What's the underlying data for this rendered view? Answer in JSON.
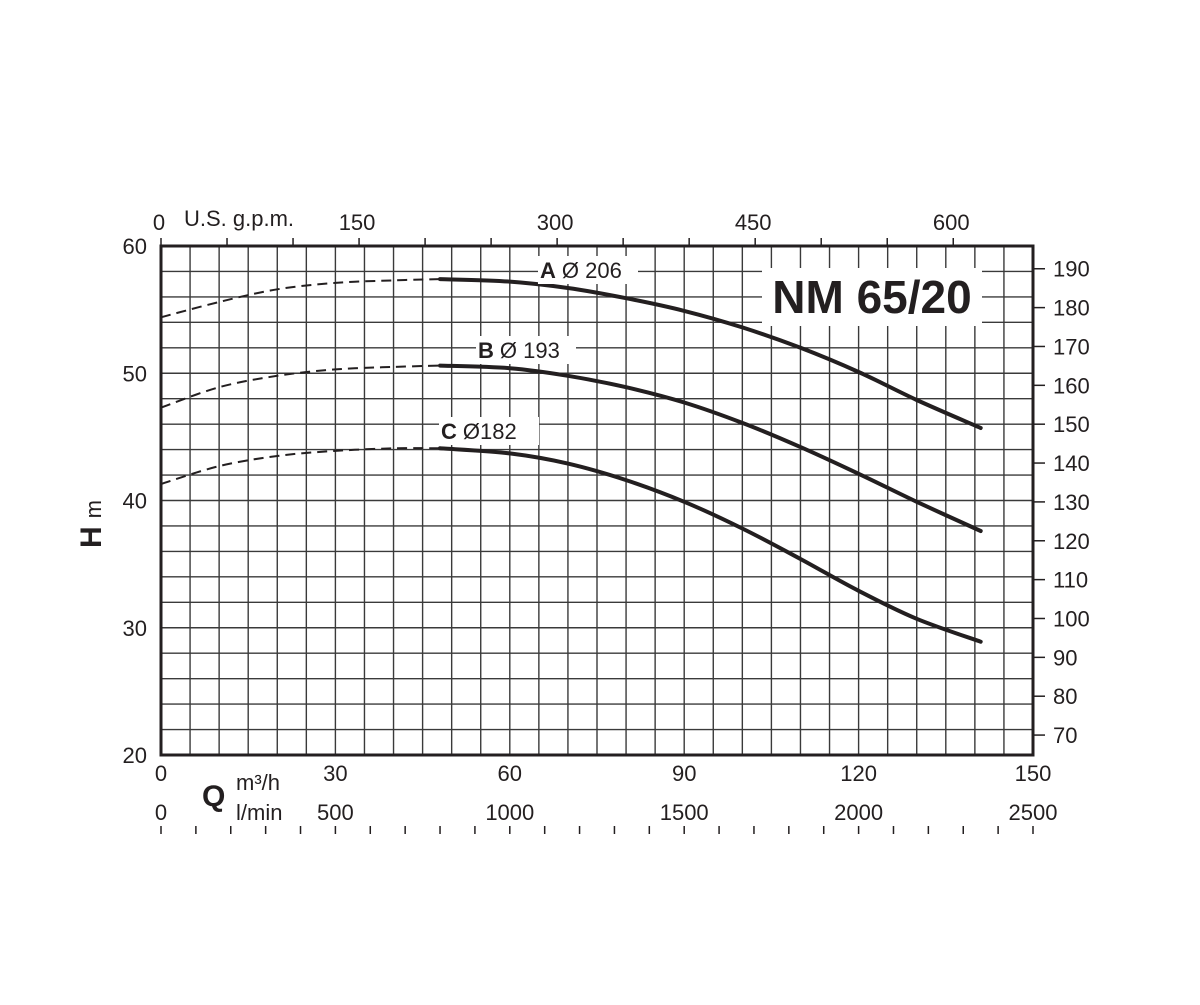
{
  "chart_data": {
    "type": "line",
    "title": "NM 65/20",
    "x": {
      "label": "Q",
      "unit": "m³/h",
      "range": [
        0,
        150
      ],
      "ticks": [
        0,
        30,
        60,
        90,
        120,
        150
      ]
    },
    "x_secondary_bottom": {
      "unit": "l/min",
      "range": [
        0,
        2500
      ],
      "ticks": [
        0,
        500,
        1000,
        1500,
        2000,
        2500
      ]
    },
    "x_secondary_top": {
      "unit": "U.S. g.p.m.",
      "ticks": [
        0,
        150,
        300,
        450,
        600
      ]
    },
    "y": {
      "label": "H",
      "unit": "m",
      "range": [
        20,
        60
      ],
      "ticks": [
        20,
        30,
        40,
        50,
        60
      ]
    },
    "y_secondary_right": {
      "unit": "",
      "ticks": [
        70,
        80,
        90,
        100,
        110,
        120,
        130,
        140,
        150,
        160,
        170,
        180,
        190
      ]
    },
    "grid": true,
    "series": [
      {
        "name": "A",
        "diameter_label": "Ø 206",
        "dashed_points": [
          [
            0,
            54.4
          ],
          [
            10,
            55.6
          ],
          [
            20,
            56.6
          ],
          [
            30,
            57.1
          ],
          [
            40,
            57.3
          ],
          [
            48,
            57.4
          ]
        ],
        "solid_points": [
          [
            48,
            57.4
          ],
          [
            60,
            57.2
          ],
          [
            70,
            56.7
          ],
          [
            80,
            55.9
          ],
          [
            90,
            54.9
          ],
          [
            100,
            53.6
          ],
          [
            110,
            52.0
          ],
          [
            120,
            50.1
          ],
          [
            130,
            47.9
          ],
          [
            141,
            45.7
          ]
        ]
      },
      {
        "name": "B",
        "diameter_label": "Ø 193",
        "dashed_points": [
          [
            0,
            47.3
          ],
          [
            10,
            48.9
          ],
          [
            20,
            49.8
          ],
          [
            30,
            50.3
          ],
          [
            40,
            50.5
          ],
          [
            48,
            50.6
          ]
        ],
        "solid_points": [
          [
            48,
            50.6
          ],
          [
            60,
            50.4
          ],
          [
            70,
            49.8
          ],
          [
            80,
            48.9
          ],
          [
            90,
            47.7
          ],
          [
            100,
            46.1
          ],
          [
            110,
            44.2
          ],
          [
            120,
            42.1
          ],
          [
            130,
            39.9
          ],
          [
            141,
            37.6
          ]
        ]
      },
      {
        "name": "C",
        "diameter_label": "Ø182",
        "dashed_points": [
          [
            0,
            41.3
          ],
          [
            10,
            42.7
          ],
          [
            20,
            43.5
          ],
          [
            30,
            43.9
          ],
          [
            40,
            44.1
          ],
          [
            48,
            44.1
          ]
        ],
        "solid_points": [
          [
            48,
            44.1
          ],
          [
            60,
            43.7
          ],
          [
            70,
            42.9
          ],
          [
            80,
            41.6
          ],
          [
            90,
            39.9
          ],
          [
            100,
            37.8
          ],
          [
            110,
            35.4
          ],
          [
            120,
            32.9
          ],
          [
            130,
            30.7
          ],
          [
            141,
            28.9
          ]
        ]
      }
    ]
  }
}
